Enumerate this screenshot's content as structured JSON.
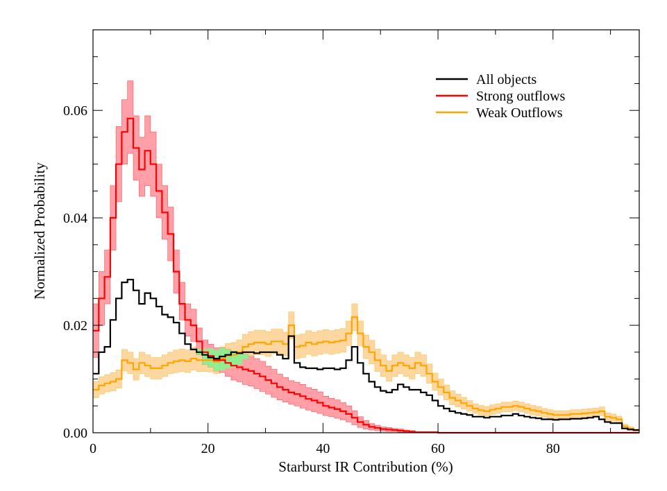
{
  "chart_data": {
    "type": "line",
    "title": "",
    "xlabel": "Starburst IR Contribution (%)",
    "ylabel": "Normalized Probability",
    "xlim": [
      0,
      95
    ],
    "ylim": [
      0,
      0.075
    ],
    "x_ticks": [
      0,
      20,
      40,
      60,
      80
    ],
    "x_tick_labels": [
      "0",
      "20",
      "40",
      "60",
      "80"
    ],
    "y_ticks": [
      0.0,
      0.02,
      0.04,
      0.06
    ],
    "y_tick_labels": [
      "0.00",
      "0.02",
      "0.04",
      "0.06"
    ],
    "grid": false,
    "legend_position": "top-right",
    "overlap_fill_color": "#90ee90",
    "series": [
      {
        "name": "All objects",
        "color": "#000000",
        "x": [
          0,
          1,
          2,
          3,
          4,
          5,
          6,
          7,
          8,
          9,
          10,
          11,
          12,
          13,
          14,
          15,
          16,
          17,
          18,
          19,
          20,
          21,
          22,
          23,
          24,
          25,
          26,
          27,
          28,
          29,
          30,
          31,
          32,
          33,
          34,
          35,
          36,
          37,
          38,
          39,
          40,
          41,
          42,
          43,
          44,
          45,
          46,
          47,
          48,
          49,
          50,
          51,
          52,
          53,
          54,
          55,
          56,
          57,
          58,
          59,
          60,
          61,
          62,
          63,
          64,
          65,
          66,
          67,
          68,
          69,
          70,
          71,
          72,
          73,
          74,
          75,
          76,
          77,
          78,
          79,
          80,
          81,
          82,
          83,
          84,
          85,
          86,
          87,
          88,
          89,
          90,
          91,
          92,
          93,
          94
        ],
        "y": [
          0.011,
          0.015,
          0.016,
          0.021,
          0.025,
          0.028,
          0.0285,
          0.0265,
          0.024,
          0.026,
          0.025,
          0.0235,
          0.022,
          0.0215,
          0.0205,
          0.0185,
          0.0165,
          0.0155,
          0.015,
          0.0145,
          0.014,
          0.0138,
          0.0142,
          0.0145,
          0.015,
          0.0148,
          0.015,
          0.015,
          0.0148,
          0.015,
          0.015,
          0.015,
          0.0145,
          0.0138,
          0.018,
          0.013,
          0.0122,
          0.012,
          0.012,
          0.0118,
          0.012,
          0.012,
          0.0118,
          0.012,
          0.0135,
          0.016,
          0.013,
          0.011,
          0.0095,
          0.0085,
          0.0078,
          0.0075,
          0.008,
          0.009,
          0.0085,
          0.008,
          0.008,
          0.0075,
          0.007,
          0.006,
          0.005,
          0.0045,
          0.004,
          0.0037,
          0.0035,
          0.0033,
          0.003,
          0.003,
          0.0028,
          0.003,
          0.003,
          0.0032,
          0.0032,
          0.0035,
          0.0032,
          0.003,
          0.0028,
          0.0027,
          0.0025,
          0.0025,
          0.0024,
          0.0025,
          0.0025,
          0.0026,
          0.0026,
          0.0027,
          0.0028,
          0.003,
          0.0025,
          0.002,
          0.0018,
          0.0018,
          0.0008,
          0.0006,
          0.0005
        ]
      },
      {
        "name": "Strong outflows",
        "color": "#ff0000",
        "band_color": "#ffa0a8",
        "x": [
          0,
          1,
          2,
          3,
          4,
          5,
          6,
          7,
          8,
          9,
          10,
          11,
          12,
          13,
          14,
          15,
          16,
          17,
          18,
          19,
          20,
          21,
          22,
          23,
          24,
          25,
          26,
          27,
          28,
          29,
          30,
          31,
          32,
          33,
          34,
          35,
          36,
          37,
          38,
          39,
          40,
          41,
          42,
          43,
          44,
          45,
          46,
          47,
          48,
          49,
          50,
          51,
          52,
          53,
          54,
          55,
          56,
          57,
          58,
          59,
          60,
          61,
          62,
          63,
          64,
          65,
          66,
          67,
          68,
          69,
          70,
          71,
          72,
          73,
          74,
          75,
          76,
          77,
          78,
          79,
          80,
          81,
          82,
          83,
          84,
          85,
          86,
          87,
          88,
          89,
          90,
          91,
          92,
          93,
          94
        ],
        "y": [
          0.019,
          0.025,
          0.029,
          0.04,
          0.05,
          0.056,
          0.0585,
          0.053,
          0.049,
          0.0525,
          0.05,
          0.045,
          0.041,
          0.037,
          0.03,
          0.024,
          0.021,
          0.02,
          0.017,
          0.015,
          0.0143,
          0.0135,
          0.0135,
          0.013,
          0.0125,
          0.0122,
          0.0118,
          0.0115,
          0.011,
          0.0105,
          0.0098,
          0.0092,
          0.0085,
          0.008,
          0.0075,
          0.0072,
          0.0068,
          0.0063,
          0.006,
          0.0056,
          0.005,
          0.0047,
          0.0044,
          0.004,
          0.0035,
          0.0028,
          0.002,
          0.0015,
          0.0011,
          0.0009,
          0.0007,
          0.0006,
          0.0005,
          0.0004,
          0.0003,
          0.0002,
          0.0001,
          0.0001,
          0.0001,
          0.0001,
          0,
          0,
          0,
          0,
          0,
          0,
          0,
          0,
          0,
          0,
          0,
          0,
          0,
          0,
          0,
          0,
          0,
          0,
          0,
          0,
          0,
          0,
          0,
          0,
          0,
          0,
          0,
          0,
          0,
          0,
          0,
          0,
          0,
          0,
          0
        ],
        "y_lower": [
          0.014,
          0.02,
          0.024,
          0.034,
          0.043,
          0.05,
          0.052,
          0.047,
          0.044,
          0.046,
          0.044,
          0.04,
          0.036,
          0.032,
          0.026,
          0.021,
          0.018,
          0.017,
          0.0145,
          0.0127,
          0.0122,
          0.0115,
          0.0112,
          0.0105,
          0.0098,
          0.0095,
          0.009,
          0.0087,
          0.0082,
          0.0077,
          0.0072,
          0.0066,
          0.0061,
          0.0057,
          0.0053,
          0.005,
          0.0046,
          0.0042,
          0.0039,
          0.0036,
          0.0032,
          0.003,
          0.0027,
          0.0024,
          0.002,
          0.0015,
          0.001,
          0.0007,
          0.0005,
          0.0004,
          0.0003,
          0.0002,
          0.0002,
          0.0001,
          0.0001,
          0,
          0,
          0,
          0,
          0,
          0,
          0,
          0,
          0,
          0,
          0,
          0,
          0,
          0,
          0,
          0,
          0,
          0,
          0,
          0,
          0,
          0,
          0,
          0,
          0,
          0,
          0,
          0,
          0,
          0,
          0,
          0,
          0,
          0,
          0,
          0,
          0,
          0,
          0,
          0
        ],
        "y_upper": [
          0.024,
          0.03,
          0.034,
          0.046,
          0.057,
          0.062,
          0.0655,
          0.059,
          0.055,
          0.059,
          0.056,
          0.05,
          0.046,
          0.042,
          0.034,
          0.028,
          0.024,
          0.023,
          0.0195,
          0.0173,
          0.0165,
          0.0158,
          0.0158,
          0.0155,
          0.0152,
          0.0149,
          0.0146,
          0.0143,
          0.0138,
          0.0133,
          0.0124,
          0.0118,
          0.0109,
          0.0103,
          0.0097,
          0.0094,
          0.009,
          0.0084,
          0.0081,
          0.0076,
          0.0068,
          0.0064,
          0.0061,
          0.0056,
          0.005,
          0.0041,
          0.003,
          0.0023,
          0.0017,
          0.0014,
          0.0011,
          0.001,
          0.0008,
          0.0007,
          0.0005,
          0.0004,
          0.0002,
          0.0002,
          0.0002,
          0.0002,
          0,
          0,
          0,
          0,
          0,
          0,
          0,
          0,
          0,
          0,
          0,
          0,
          0,
          0,
          0,
          0,
          0,
          0,
          0,
          0,
          0,
          0,
          0,
          0,
          0,
          0,
          0,
          0,
          0,
          0,
          0,
          0,
          0,
          0,
          0
        ]
      },
      {
        "name": "Weak Outflows",
        "color": "#ffa500",
        "band_color": "#fcd8a0",
        "x": [
          0,
          1,
          2,
          3,
          4,
          5,
          6,
          7,
          8,
          9,
          10,
          11,
          12,
          13,
          14,
          15,
          16,
          17,
          18,
          19,
          20,
          21,
          22,
          23,
          24,
          25,
          26,
          27,
          28,
          29,
          30,
          31,
          32,
          33,
          34,
          35,
          36,
          37,
          38,
          39,
          40,
          41,
          42,
          43,
          44,
          45,
          46,
          47,
          48,
          49,
          50,
          51,
          52,
          53,
          54,
          55,
          56,
          57,
          58,
          59,
          60,
          61,
          62,
          63,
          64,
          65,
          66,
          67,
          68,
          69,
          70,
          71,
          72,
          73,
          74,
          75,
          76,
          77,
          78,
          79,
          80,
          81,
          82,
          83,
          84,
          85,
          86,
          87,
          88,
          89,
          90,
          91,
          92,
          93,
          94
        ],
        "y": [
          0.008,
          0.0088,
          0.0092,
          0.0095,
          0.01,
          0.0135,
          0.013,
          0.0118,
          0.013,
          0.0125,
          0.012,
          0.012,
          0.0125,
          0.013,
          0.0133,
          0.0135,
          0.0133,
          0.0138,
          0.0135,
          0.0135,
          0.0135,
          0.0132,
          0.0138,
          0.0143,
          0.0145,
          0.015,
          0.016,
          0.0165,
          0.0168,
          0.0168,
          0.0165,
          0.017,
          0.017,
          0.0165,
          0.02,
          0.016,
          0.0162,
          0.0168,
          0.0165,
          0.0168,
          0.017,
          0.0168,
          0.017,
          0.0172,
          0.0185,
          0.0215,
          0.0185,
          0.016,
          0.015,
          0.0135,
          0.0125,
          0.0115,
          0.0125,
          0.013,
          0.0125,
          0.012,
          0.013,
          0.0125,
          0.011,
          0.0095,
          0.0085,
          0.0075,
          0.0065,
          0.006,
          0.0055,
          0.005,
          0.0045,
          0.0042,
          0.004,
          0.0043,
          0.0045,
          0.0048,
          0.0048,
          0.005,
          0.0048,
          0.0045,
          0.0042,
          0.004,
          0.0037,
          0.0035,
          0.0033,
          0.0033,
          0.0033,
          0.0035,
          0.0035,
          0.0036,
          0.0037,
          0.0038,
          0.004,
          0.003,
          0.0028,
          0.0025,
          0.0012,
          0.0008,
          0.0005
        ],
        "y_lower": [
          0.0065,
          0.0072,
          0.0076,
          0.0078,
          0.0083,
          0.0115,
          0.011,
          0.0098,
          0.011,
          0.0105,
          0.01,
          0.01,
          0.0105,
          0.011,
          0.0112,
          0.0114,
          0.0112,
          0.0117,
          0.0114,
          0.0114,
          0.0113,
          0.011,
          0.0116,
          0.012,
          0.0122,
          0.0127,
          0.0137,
          0.0142,
          0.0145,
          0.0145,
          0.0142,
          0.0147,
          0.0147,
          0.0143,
          0.0175,
          0.0138,
          0.014,
          0.0146,
          0.0143,
          0.0146,
          0.0148,
          0.0146,
          0.0148,
          0.015,
          0.0162,
          0.019,
          0.0162,
          0.0138,
          0.0128,
          0.0114,
          0.0105,
          0.0096,
          0.0105,
          0.011,
          0.0105,
          0.01,
          0.011,
          0.0105,
          0.0092,
          0.0079,
          0.007,
          0.0061,
          0.0052,
          0.0048,
          0.0044,
          0.004,
          0.0036,
          0.0033,
          0.0031,
          0.0034,
          0.0036,
          0.0039,
          0.0039,
          0.0041,
          0.0039,
          0.0036,
          0.0033,
          0.0031,
          0.0029,
          0.0027,
          0.0025,
          0.0025,
          0.0025,
          0.0027,
          0.0027,
          0.0028,
          0.0029,
          0.003,
          0.0032,
          0.0023,
          0.0021,
          0.0019,
          0.0008,
          0.0005,
          0.0003
        ],
        "y_upper": [
          0.0095,
          0.0104,
          0.0108,
          0.0112,
          0.0117,
          0.0155,
          0.015,
          0.0138,
          0.015,
          0.0145,
          0.014,
          0.014,
          0.0145,
          0.015,
          0.0154,
          0.0156,
          0.0154,
          0.0159,
          0.0156,
          0.0156,
          0.0157,
          0.0154,
          0.016,
          0.0166,
          0.0168,
          0.0173,
          0.0183,
          0.0188,
          0.0191,
          0.0191,
          0.0188,
          0.0193,
          0.0193,
          0.0187,
          0.0225,
          0.0182,
          0.0184,
          0.019,
          0.0187,
          0.019,
          0.0192,
          0.019,
          0.0192,
          0.0194,
          0.0208,
          0.024,
          0.0208,
          0.0182,
          0.0172,
          0.0156,
          0.0145,
          0.0134,
          0.0145,
          0.015,
          0.0145,
          0.014,
          0.015,
          0.0145,
          0.0128,
          0.0111,
          0.01,
          0.0089,
          0.0078,
          0.0072,
          0.0066,
          0.006,
          0.0054,
          0.0051,
          0.0049,
          0.0052,
          0.0054,
          0.0057,
          0.0057,
          0.0059,
          0.0057,
          0.0054,
          0.0051,
          0.0049,
          0.0045,
          0.0043,
          0.0041,
          0.0041,
          0.0041,
          0.0043,
          0.0043,
          0.0044,
          0.0045,
          0.0046,
          0.0048,
          0.0037,
          0.0035,
          0.0031,
          0.0016,
          0.0011,
          0.0007
        ]
      }
    ]
  }
}
